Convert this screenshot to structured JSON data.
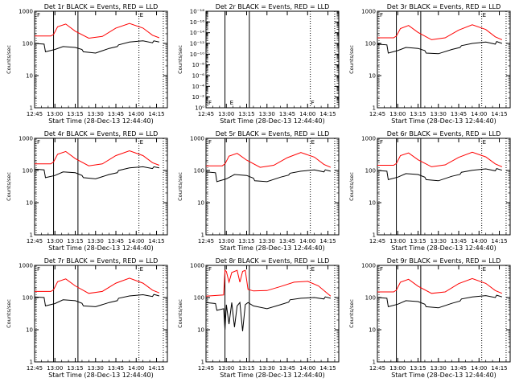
{
  "chart_data": [
    {
      "type": "line",
      "title": "Det 1r  BLACK = Events, RED = LLD",
      "xlabel": "Start Time (28-Dec-13 12:44:40)",
      "ylabel": "Counts/sec",
      "yscale": "log",
      "yticks": [
        "1",
        "10",
        "100",
        "1000"
      ],
      "xticks": [
        "12:45",
        "13:00",
        "13:15",
        "13:30",
        "13:45",
        "14:00",
        "14:15"
      ],
      "markers": [
        "F",
        "E"
      ],
      "series": [
        {
          "name": "RED",
          "color": "#ff0000",
          "x": [
            "12:45",
            "12:57",
            "12:59",
            "13:02",
            "13:08",
            "13:15",
            "13:25",
            "13:35",
            "13:45",
            "13:55",
            "14:05",
            "14:12",
            "14:17"
          ],
          "values": [
            170,
            170,
            190,
            330,
            400,
            240,
            145,
            165,
            300,
            420,
            300,
            180,
            150
          ]
        },
        {
          "name": "BLACK",
          "color": "#000000",
          "x": [
            "12:45",
            "12:52",
            "12:53",
            "13:00",
            "13:06",
            "13:15",
            "13:20",
            "13:21",
            "13:30",
            "13:40",
            "13:46",
            "13:47",
            "13:55",
            "14:05",
            "14:12",
            "14:13",
            "14:17"
          ],
          "values": [
            100,
            95,
            55,
            65,
            80,
            75,
            65,
            55,
            50,
            70,
            80,
            90,
            110,
            120,
            105,
            120,
            110
          ]
        }
      ]
    },
    {
      "type": "line",
      "title": "Det 2r  BLACK = Events, RED = LLD",
      "xlabel": "Start Time (28-Dec-13 12:44:40)",
      "ylabel": "Counts/sec",
      "yscale": "log",
      "yticks": [
        "10⁰",
        "10⁻²",
        "10⁻⁴",
        "10⁻⁶",
        "10⁻⁸",
        "10⁻¹⁰",
        "10⁻¹²",
        "10⁻¹⁴",
        "10⁻¹⁶",
        "10⁻¹⁸"
      ],
      "xticks": [
        "12:45",
        "13:00",
        "13:15",
        "13:30",
        "13:45",
        "14:00",
        "14:15"
      ],
      "markers": [
        "F",
        "E",
        "F"
      ],
      "series": []
    },
    {
      "type": "line",
      "title": "Det 3r  BLACK = Events, RED = LLD",
      "xlabel": "Start Time (28-Dec-13 12:44:40)",
      "ylabel": "Counts/sec",
      "yscale": "log",
      "yticks": [
        "1",
        "10",
        "100",
        "1000"
      ],
      "xticks": [
        "12:45",
        "13:00",
        "13:15",
        "13:30",
        "13:45",
        "14:00",
        "14:15"
      ],
      "markers": [
        "F",
        "E"
      ],
      "series": [
        {
          "name": "RED",
          "color": "#ff0000",
          "x": [
            "12:45",
            "12:57",
            "12:59",
            "13:02",
            "13:08",
            "13:15",
            "13:25",
            "13:35",
            "13:45",
            "13:55",
            "14:05",
            "14:12",
            "14:17"
          ],
          "values": [
            150,
            150,
            170,
            290,
            360,
            220,
            130,
            150,
            260,
            380,
            270,
            160,
            130
          ]
        },
        {
          "name": "BLACK",
          "color": "#000000",
          "x": [
            "12:45",
            "12:52",
            "12:53",
            "13:00",
            "13:06",
            "13:15",
            "13:20",
            "13:21",
            "13:30",
            "13:40",
            "13:46",
            "13:47",
            "13:55",
            "14:05",
            "14:12",
            "14:13",
            "14:17"
          ],
          "values": [
            95,
            90,
            50,
            60,
            75,
            70,
            60,
            50,
            48,
            65,
            75,
            85,
            100,
            110,
            95,
            115,
            100
          ]
        }
      ]
    },
    {
      "type": "line",
      "title": "Det 4r  BLACK = Events, RED = LLD",
      "xlabel": "Start Time (28-Dec-13 12:44:40)",
      "ylabel": "Counts/sec",
      "yscale": "log",
      "yticks": [
        "1",
        "10",
        "100",
        "1000"
      ],
      "xticks": [
        "12:45",
        "13:00",
        "13:15",
        "13:30",
        "13:45",
        "14:00",
        "14:15"
      ],
      "markers": [
        "F",
        "E"
      ],
      "series": [
        {
          "name": "RED",
          "color": "#ff0000",
          "x": [
            "12:45",
            "12:57",
            "12:59",
            "13:02",
            "13:08",
            "13:15",
            "13:25",
            "13:35",
            "13:45",
            "13:55",
            "14:05",
            "14:12",
            "14:17"
          ],
          "values": [
            160,
            160,
            185,
            320,
            390,
            235,
            140,
            160,
            290,
            410,
            290,
            175,
            145
          ]
        },
        {
          "name": "BLACK",
          "color": "#000000",
          "x": [
            "12:45",
            "12:52",
            "12:53",
            "13:00",
            "13:06",
            "13:15",
            "13:20",
            "13:21",
            "13:30",
            "13:40",
            "13:46",
            "13:47",
            "13:55",
            "14:05",
            "14:12",
            "14:13",
            "14:17"
          ],
          "values": [
            110,
            105,
            60,
            70,
            90,
            85,
            70,
            60,
            55,
            75,
            85,
            100,
            120,
            130,
            115,
            130,
            120
          ]
        }
      ]
    },
    {
      "type": "line",
      "title": "Det 5r  BLACK = Events, RED = LLD",
      "xlabel": "Start Time (28-Dec-13 12:44:40)",
      "ylabel": "Counts/sec",
      "yscale": "log",
      "yticks": [
        "1",
        "10",
        "100",
        "1000"
      ],
      "xticks": [
        "12:45",
        "13:00",
        "13:15",
        "13:30",
        "13:45",
        "14:00",
        "14:15"
      ],
      "markers": [
        "F",
        "E"
      ],
      "series": [
        {
          "name": "RED",
          "color": "#ff0000",
          "x": [
            "12:45",
            "12:57",
            "12:59",
            "13:02",
            "13:08",
            "13:15",
            "13:25",
            "13:35",
            "13:45",
            "13:55",
            "14:05",
            "14:12",
            "14:17"
          ],
          "values": [
            140,
            140,
            160,
            280,
            340,
            210,
            125,
            145,
            250,
            360,
            260,
            155,
            125
          ]
        },
        {
          "name": "BLACK",
          "color": "#000000",
          "x": [
            "12:45",
            "12:52",
            "12:53",
            "13:00",
            "13:06",
            "13:15",
            "13:20",
            "13:21",
            "13:30",
            "13:40",
            "13:46",
            "13:47",
            "13:55",
            "14:05",
            "14:12",
            "14:13",
            "14:17"
          ],
          "values": [
            90,
            85,
            45,
            55,
            75,
            70,
            58,
            48,
            45,
            62,
            72,
            82,
            95,
            105,
            90,
            105,
            95
          ]
        }
      ]
    },
    {
      "type": "line",
      "title": "Det 6r  BLACK = Events, RED = LLD",
      "xlabel": "Start Time (28-Dec-13 12:44:40)",
      "ylabel": "Counts/sec",
      "yscale": "log",
      "yticks": [
        "1",
        "10",
        "100",
        "1000"
      ],
      "xticks": [
        "12:45",
        "13:00",
        "13:15",
        "13:30",
        "13:45",
        "14:00",
        "14:15"
      ],
      "markers": [
        "F",
        "E"
      ],
      "series": [
        {
          "name": "RED",
          "color": "#ff0000",
          "x": [
            "12:45",
            "12:57",
            "12:59",
            "13:02",
            "13:08",
            "13:15",
            "13:25",
            "13:35",
            "13:45",
            "13:55",
            "14:05",
            "14:12",
            "14:17"
          ],
          "values": [
            145,
            145,
            165,
            290,
            350,
            215,
            130,
            150,
            255,
            370,
            265,
            160,
            130
          ]
        },
        {
          "name": "BLACK",
          "color": "#000000",
          "x": [
            "12:45",
            "12:52",
            "12:53",
            "13:00",
            "13:06",
            "13:15",
            "13:20",
            "13:21",
            "13:30",
            "13:40",
            "13:46",
            "13:47",
            "13:55",
            "14:05",
            "14:12",
            "14:13",
            "14:17"
          ],
          "values": [
            100,
            95,
            52,
            62,
            80,
            75,
            62,
            52,
            48,
            66,
            76,
            88,
            102,
            112,
            98,
            115,
            102
          ]
        }
      ]
    },
    {
      "type": "line",
      "title": "Det 7r  BLACK = Events, RED = LLD",
      "xlabel": "Start Time (28-Dec-13 12:44:40)",
      "ylabel": "Counts/sec",
      "yscale": "log",
      "yticks": [
        "1",
        "10",
        "100",
        "1000"
      ],
      "xticks": [
        "12:45",
        "13:00",
        "13:15",
        "13:30",
        "13:45",
        "14:00",
        "14:15"
      ],
      "markers": [
        "F",
        "E"
      ],
      "series": [
        {
          "name": "RED",
          "color": "#ff0000",
          "x": [
            "12:45",
            "12:57",
            "12:59",
            "13:02",
            "13:08",
            "13:15",
            "13:25",
            "13:35",
            "13:45",
            "13:55",
            "14:05",
            "14:12",
            "14:17"
          ],
          "values": [
            155,
            155,
            175,
            310,
            380,
            230,
            135,
            155,
            280,
            400,
            280,
            170,
            140
          ]
        },
        {
          "name": "BLACK",
          "color": "#000000",
          "x": [
            "12:45",
            "12:52",
            "12:53",
            "13:00",
            "13:06",
            "13:15",
            "13:20",
            "13:21",
            "13:30",
            "13:40",
            "13:46",
            "13:47",
            "13:55",
            "14:05",
            "14:12",
            "14:13",
            "14:17"
          ],
          "values": [
            105,
            100,
            55,
            65,
            85,
            80,
            66,
            55,
            52,
            70,
            80,
            95,
            112,
            122,
            108,
            125,
            112
          ]
        }
      ]
    },
    {
      "type": "line",
      "title": "Det 8r  BLACK = Events, RED = LLD",
      "xlabel": "Start Time (28-Dec-13 12:44:40)",
      "ylabel": "Counts/sec",
      "yscale": "log",
      "yticks": [
        "1",
        "10",
        "100",
        "1000"
      ],
      "xticks": [
        "12:45",
        "13:00",
        "13:15",
        "13:30",
        "13:45",
        "14:00",
        "14:15"
      ],
      "markers": [
        "F",
        "E"
      ],
      "series": [
        {
          "name": "RED",
          "color": "#ff0000",
          "x": [
            "12:45",
            "12:58",
            "12:59",
            "13:00",
            "13:02",
            "13:04",
            "13:08",
            "13:10",
            "13:12",
            "13:14",
            "13:16",
            "13:20",
            "13:30",
            "13:40",
            "13:50",
            "14:00",
            "14:08",
            "14:17"
          ],
          "values": [
            110,
            120,
            700,
            650,
            300,
            600,
            700,
            300,
            650,
            700,
            180,
            160,
            165,
            220,
            300,
            320,
            230,
            110
          ]
        },
        {
          "name": "BLACK",
          "color": "#000000",
          "x": [
            "12:45",
            "12:52",
            "12:53",
            "12:58",
            "12:59",
            "13:00",
            "13:02",
            "13:04",
            "13:06",
            "13:08",
            "13:10",
            "13:12",
            "13:14",
            "13:16",
            "13:20",
            "13:30",
            "13:40",
            "13:46",
            "13:47",
            "13:55",
            "14:05",
            "14:12",
            "14:13",
            "14:17"
          ],
          "values": [
            70,
            65,
            40,
            45,
            10,
            60,
            15,
            70,
            12,
            55,
            70,
            9,
            60,
            70,
            55,
            45,
            60,
            72,
            85,
            95,
            100,
            90,
            105,
            95
          ]
        }
      ]
    },
    {
      "type": "line",
      "title": "Det 9r  BLACK = Events, RED = LLD",
      "xlabel": "Start Time (28-Dec-13 12:44:40)",
      "ylabel": "Counts/sec",
      "yscale": "log",
      "yticks": [
        "1",
        "10",
        "100",
        "1000"
      ],
      "xticks": [
        "12:45",
        "13:00",
        "13:15",
        "13:30",
        "13:45",
        "14:00",
        "14:15"
      ],
      "markers": [
        "F",
        "E"
      ],
      "series": [
        {
          "name": "RED",
          "color": "#ff0000",
          "x": [
            "12:45",
            "12:57",
            "12:59",
            "13:02",
            "13:08",
            "13:15",
            "13:25",
            "13:35",
            "13:45",
            "13:55",
            "14:05",
            "14:12",
            "14:17"
          ],
          "values": [
            150,
            150,
            170,
            300,
            370,
            225,
            135,
            150,
            270,
            390,
            275,
            165,
            135
          ]
        },
        {
          "name": "BLACK",
          "color": "#000000",
          "x": [
            "12:45",
            "12:52",
            "12:53",
            "13:00",
            "13:06",
            "13:15",
            "13:20",
            "13:21",
            "13:30",
            "13:40",
            "13:46",
            "13:47",
            "13:55",
            "14:05",
            "14:12",
            "14:13",
            "14:17"
          ],
          "values": [
            100,
            95,
            52,
            62,
            80,
            75,
            62,
            52,
            48,
            66,
            78,
            90,
            105,
            115,
            100,
            118,
            105
          ]
        }
      ]
    }
  ]
}
